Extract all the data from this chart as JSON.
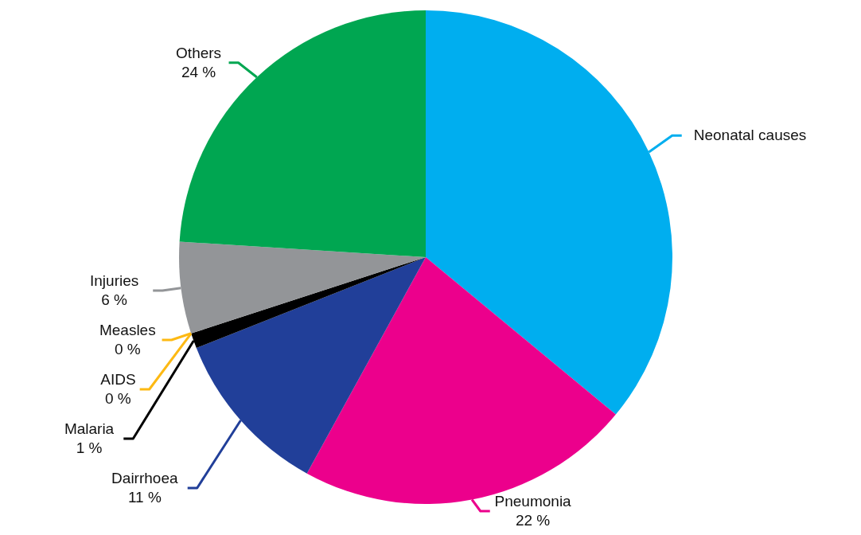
{
  "chart_data": {
    "type": "pie",
    "categories": [
      "Neonatal causes",
      "Pneumonia",
      "Dairrhoea",
      "Malaria",
      "AIDS",
      "Measles",
      "Injuries",
      "Others"
    ],
    "values": [
      36,
      22,
      11,
      1,
      0,
      0,
      6,
      24
    ],
    "colors": [
      "#00aeef",
      "#ec008c",
      "#213f99",
      "#000000",
      "#fdb913",
      "#fdb913",
      "#939598",
      "#00a651"
    ],
    "value_labels": [
      null,
      "22 %",
      "11 %",
      "1 %",
      "0 %",
      "0 %",
      "6 %",
      "24 %"
    ]
  }
}
